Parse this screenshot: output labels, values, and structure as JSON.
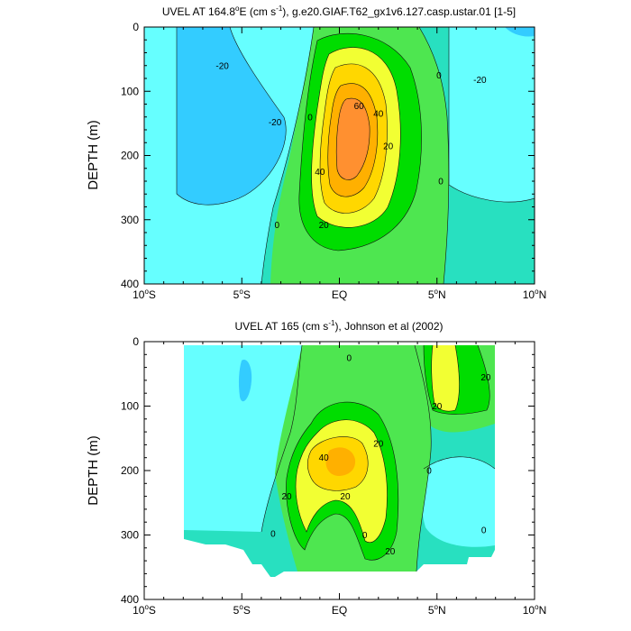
{
  "colors": {
    "c_neg30": "#00e6e6",
    "c_neg20": "#33ccff",
    "c_neg10": "#66ffff",
    "c_0": "#28e0c0",
    "c_10": "#4ee650",
    "c_20": "#00dd00",
    "c_30": "#f2ff33",
    "c_40": "#ffd700",
    "c_50": "#ffb000",
    "c_60": "#ff9030",
    "axis": "#000000"
  },
  "chart_data": [
    {
      "type": "heatmap",
      "title": "UVEL AT 164.8°E (cm s⁻¹), g.e20.GIAF.T62_gx1v6.127.casp.ustar.01 [1-5]",
      "title_parts": {
        "pre": "UVEL AT 164.8",
        "deg": "o",
        "mid": "E (cm s",
        "sup": "-1",
        "post": "), g.e20.GIAF.T62_gx1v6.127.casp.ustar.01 [1-5]"
      },
      "xlabel": "",
      "ylabel": "DEPTH (m)",
      "xlim": [
        -10,
        10
      ],
      "ylim": [
        400,
        0
      ],
      "xticks": [
        -10,
        -5,
        0,
        5,
        10
      ],
      "xtick_labels": [
        {
          "num": "10",
          "deg": "o",
          "hem": "S"
        },
        {
          "num": "5",
          "deg": "o",
          "hem": "S"
        },
        {
          "num": "EQ",
          "deg": "",
          "hem": ""
        },
        {
          "num": "5",
          "deg": "o",
          "hem": "N"
        },
        {
          "num": "10",
          "deg": "o",
          "hem": "N"
        }
      ],
      "yticks": [
        0,
        100,
        200,
        300,
        400
      ],
      "contour_labels": [
        {
          "text": "-20",
          "lat": -6.0,
          "depth": 60
        },
        {
          "text": "-20",
          "lat": -3.3,
          "depth": 148
        },
        {
          "text": "-20",
          "lat": 7.2,
          "depth": 82
        },
        {
          "text": "0",
          "lat": -1.5,
          "depth": 140
        },
        {
          "text": "0",
          "lat": 5.1,
          "depth": 75
        },
        {
          "text": "0",
          "lat": 5.2,
          "depth": 240
        },
        {
          "text": "0",
          "lat": -3.2,
          "depth": 308
        },
        {
          "text": "20",
          "lat": -0.8,
          "depth": 308
        },
        {
          "text": "20",
          "lat": 2.5,
          "depth": 185
        },
        {
          "text": "40",
          "lat": 2.0,
          "depth": 135
        },
        {
          "text": "40",
          "lat": -1.0,
          "depth": 225
        },
        {
          "text": "60",
          "lat": 1.0,
          "depth": 123
        }
      ]
    },
    {
      "type": "heatmap",
      "title": "UVEL AT 165 (cm s⁻¹), Johnson et al (2002)",
      "title_parts": {
        "pre": "UVEL AT 165 (cm s",
        "sup": "-1",
        "post": "), Johnson et al (2002)"
      },
      "xlabel": "",
      "ylabel": "DEPTH (m)",
      "xlim": [
        -10,
        10
      ],
      "ylim": [
        400,
        0
      ],
      "xticks": [
        -10,
        -5,
        0,
        5,
        10
      ],
      "xtick_labels": [
        {
          "num": "10",
          "deg": "o",
          "hem": "S"
        },
        {
          "num": "5",
          "deg": "o",
          "hem": "S"
        },
        {
          "num": "EQ",
          "deg": "",
          "hem": ""
        },
        {
          "num": "5",
          "deg": "o",
          "hem": "N"
        },
        {
          "num": "10",
          "deg": "o",
          "hem": "N"
        }
      ],
      "yticks": [
        0,
        100,
        200,
        300,
        400
      ],
      "contour_labels": [
        {
          "text": "0",
          "lat": 0.5,
          "depth": 25
        },
        {
          "text": "0",
          "lat": 4.6,
          "depth": 200
        },
        {
          "text": "0",
          "lat": -3.4,
          "depth": 298
        },
        {
          "text": "0",
          "lat": 1.3,
          "depth": 300
        },
        {
          "text": "0",
          "lat": 7.4,
          "depth": 292
        },
        {
          "text": "20",
          "lat": 7.5,
          "depth": 55
        },
        {
          "text": "20",
          "lat": 5.0,
          "depth": 100
        },
        {
          "text": "20",
          "lat": 2.0,
          "depth": 158
        },
        {
          "text": "20",
          "lat": -2.7,
          "depth": 240
        },
        {
          "text": "20",
          "lat": 0.3,
          "depth": 240
        },
        {
          "text": "20",
          "lat": 2.6,
          "depth": 325
        },
        {
          "text": "40",
          "lat": -0.8,
          "depth": 180
        }
      ]
    }
  ]
}
